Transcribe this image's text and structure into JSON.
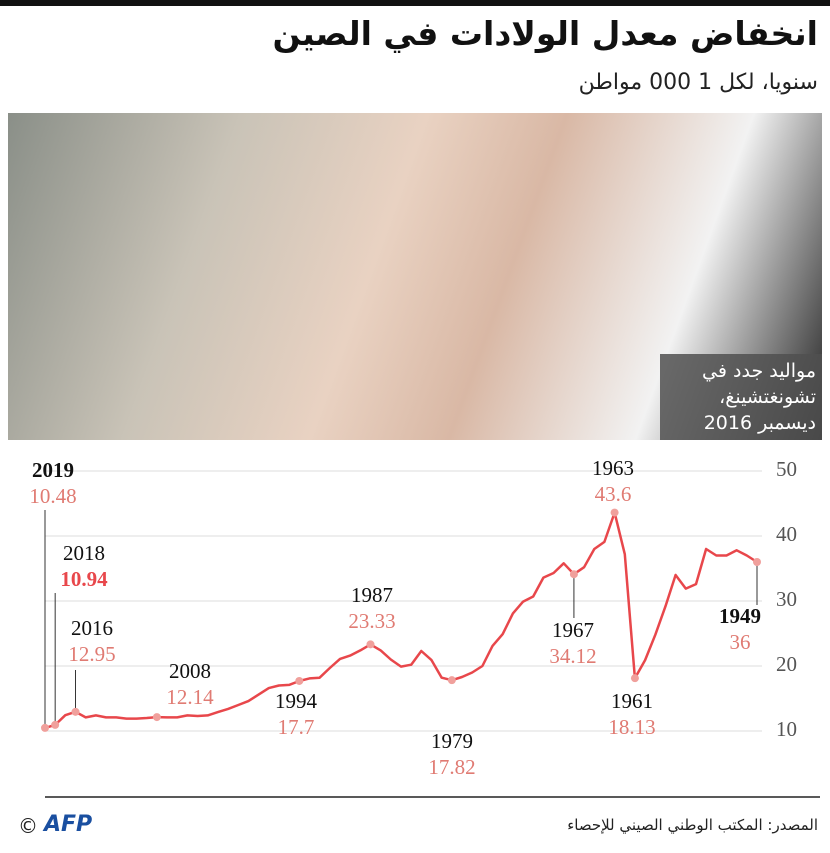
{
  "header": {
    "title": "انخفاض معدل الولادات في الصين",
    "subtitle": "سنويا، لكل 1 000 مواطن"
  },
  "photo": {
    "caption": [
      "مواليد جدد في",
      "تشونغتشينغ،",
      "ديسمبر 2016"
    ]
  },
  "chart_data": {
    "type": "line",
    "x": [
      1949,
      1950,
      1951,
      1952,
      1953,
      1954,
      1955,
      1956,
      1957,
      1958,
      1959,
      1960,
      1961,
      1962,
      1963,
      1964,
      1965,
      1966,
      1967,
      1968,
      1969,
      1970,
      1971,
      1972,
      1973,
      1974,
      1975,
      1976,
      1977,
      1978,
      1979,
      1980,
      1981,
      1982,
      1983,
      1984,
      1985,
      1986,
      1987,
      1988,
      1989,
      1990,
      1991,
      1992,
      1993,
      1994,
      1995,
      1996,
      1997,
      1998,
      1999,
      2000,
      2001,
      2002,
      2003,
      2004,
      2005,
      2006,
      2007,
      2008,
      2009,
      2010,
      2011,
      2012,
      2013,
      2014,
      2015,
      2016,
      2017,
      2018,
      2019
    ],
    "series": [
      {
        "color": "#e8474b",
        "values": [
          36,
          37,
          37.8,
          37,
          37,
          38,
          32.6,
          31.9,
          34,
          29.2,
          24.8,
          20.9,
          18.13,
          37.2,
          43.6,
          39.1,
          38,
          35.2,
          34.12,
          35.8,
          34.3,
          33.6,
          30.7,
          29.9,
          28.1,
          24.9,
          23.1,
          20,
          19,
          18.3,
          17.82,
          18.2,
          20.9,
          22.3,
          20.2,
          19.9,
          21,
          22.4,
          23.33,
          22.4,
          21.6,
          21.1,
          19.7,
          18.2,
          18.1,
          17.7,
          17.1,
          17,
          16.6,
          15.6,
          14.6,
          14,
          13.4,
          12.9,
          12.4,
          12.3,
          12.4,
          12.1,
          12.1,
          12.14,
          12,
          11.9,
          11.9,
          12.1,
          12.1,
          12.4,
          12.1,
          12.95,
          12.43,
          10.94,
          10.48
        ]
      }
    ],
    "xlim": [
      2019,
      1949
    ],
    "ylim": [
      0,
      50
    ],
    "yticks": [
      10,
      20,
      30,
      40,
      50
    ],
    "grid": true
  },
  "footer": {
    "source": "المصدر: المكتب الوطني الصيني للإحصاء",
    "logo": "AFP",
    "copyright": "©"
  }
}
